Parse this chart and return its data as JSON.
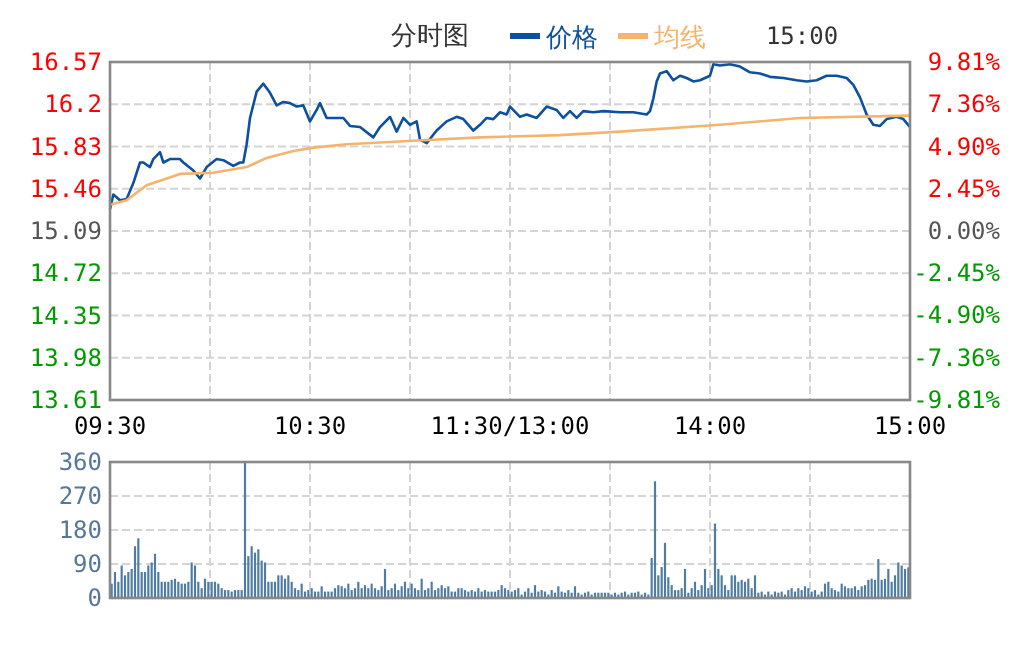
{
  "chart_data": [
    {
      "type": "line",
      "title": "分时图",
      "legend": "top",
      "grid": true,
      "annotations": [
        "15:00"
      ],
      "categories": [
        "09:30",
        null,
        null,
        null,
        null,
        null,
        null,
        null,
        null,
        null,
        null,
        null,
        null,
        null,
        null,
        null,
        null,
        null,
        null,
        null,
        null,
        null,
        null,
        null,
        null,
        null,
        null,
        null,
        null,
        null,
        null,
        null,
        null,
        null,
        null,
        null,
        null,
        null,
        null,
        null,
        null,
        null,
        null,
        null,
        null,
        null,
        null,
        null,
        null,
        null,
        null,
        null,
        null,
        null,
        null,
        null,
        null,
        null,
        null,
        null,
        "10:30",
        null,
        null,
        null,
        null,
        null,
        null,
        null,
        null,
        null,
        null,
        null,
        null,
        null,
        null,
        null,
        null,
        null,
        null,
        null,
        null,
        null,
        null,
        null,
        null,
        null,
        null,
        null,
        null,
        null,
        null,
        null,
        null,
        null,
        null,
        null,
        null,
        null,
        null,
        null,
        null,
        null,
        null,
        null,
        null,
        null,
        null,
        null,
        null,
        null,
        null,
        null,
        null,
        null,
        null,
        null,
        null,
        null,
        null,
        null,
        "11:30/13:00",
        null,
        null,
        null,
        null,
        null,
        null,
        null,
        null,
        null,
        null,
        null,
        null,
        null,
        null,
        null,
        null,
        null,
        null,
        null,
        null,
        null,
        null,
        null,
        null,
        null,
        null,
        null,
        null,
        null,
        null,
        null,
        null,
        null,
        null,
        null,
        null,
        null,
        null,
        null,
        null,
        null,
        null,
        null,
        null,
        null,
        null,
        null,
        null,
        null,
        null,
        null,
        null,
        null,
        null,
        null,
        null,
        null,
        null,
        null,
        "14:00",
        null,
        null,
        null,
        null,
        null,
        null,
        null,
        null,
        null,
        null,
        null,
        null,
        null,
        null,
        null,
        null,
        null,
        null,
        null,
        null,
        null,
        null,
        null,
        null,
        null,
        null,
        null,
        null,
        null,
        null,
        null,
        null,
        null,
        null,
        null,
        null,
        null,
        null,
        null,
        null,
        null,
        null,
        null,
        null,
        null,
        null,
        null,
        null,
        null,
        null,
        null,
        null,
        null,
        null,
        null,
        null,
        null,
        null,
        null,
        "15:00"
      ],
      "ylim": [
        13.61,
        16.57
      ],
      "yticks": [
        13.61,
        13.98,
        14.35,
        14.72,
        15.09,
        15.46,
        15.83,
        16.2,
        16.57
      ],
      "y2lim": [
        -9.81,
        9.81
      ],
      "y2ticks": [
        {
          "value": -9.81,
          "label": "-9.81%"
        },
        {
          "value": -7.36,
          "label": "-7.36%"
        },
        {
          "value": -4.9,
          "label": "-4.90%"
        },
        {
          "value": -2.45,
          "label": "-2.45%"
        },
        {
          "value": 0,
          "label": "0.00%"
        },
        {
          "value": 2.45,
          "label": "2.45%"
        },
        {
          "value": 4.9,
          "label": "4.90%"
        },
        {
          "value": 7.36,
          "label": "7.36%"
        },
        {
          "value": 9.81,
          "label": "9.81%"
        }
      ],
      "series": [
        {
          "name": "价格",
          "color": "#0d50a0",
          "values": [
            15.28,
            15.41,
            null,
            15.36,
            null,
            15.37,
            null,
            15.51,
            null,
            15.69,
            15.69,
            null,
            15.65,
            15.72,
            null,
            15.78,
            15.69,
            null,
            15.72,
            null,
            null,
            15.72,
            15.69,
            null,
            null,
            15.62,
            null,
            15.55,
            null,
            15.65,
            null,
            null,
            15.72,
            null,
            15.71,
            null,
            null,
            15.66,
            null,
            15.69,
            15.69,
            15.85,
            16.08,
            null,
            16.31,
            null,
            16.38,
            null,
            16.3,
            null,
            16.19,
            null,
            16.22,
            null,
            16.21,
            null,
            16.18,
            null,
            16.19,
            null,
            16.05,
            null,
            16.15,
            16.21,
            null,
            16.08,
            16.08,
            null,
            null,
            null,
            16.08,
            null,
            16.01,
            null,
            null,
            16.0,
            null,
            null,
            null,
            15.91,
            null,
            16.0,
            null,
            null,
            16.09,
            null,
            15.96,
            null,
            16.08,
            null,
            16.02,
            null,
            16.05,
            15.89,
            null,
            15.86,
            null,
            null,
            15.97,
            null,
            null,
            16.05,
            null,
            null,
            16.09,
            null,
            16.07,
            null,
            null,
            15.97,
            null,
            16.02,
            null,
            16.08,
            null,
            16.07,
            null,
            16.13,
            null,
            16.11,
            16.18,
            null,
            null,
            16.09,
            null,
            16.11,
            null,
            null,
            16.08,
            null,
            null,
            16.18,
            null,
            null,
            16.15,
            null,
            16.08,
            null,
            16.14,
            null,
            16.08,
            null,
            16.14,
            null,
            null,
            16.13,
            null,
            null,
            16.14,
            null,
            null,
            null,
            null,
            16.13,
            null,
            null,
            null,
            16.13,
            null,
            null,
            null,
            16.11,
            16.14,
            16.25,
            16.4,
            16.47,
            null,
            16.49,
            null,
            16.41,
            null,
            16.45,
            null,
            16.43,
            null,
            16.4,
            null,
            16.41,
            null,
            null,
            16.45,
            16.55,
            null,
            16.54,
            null,
            null,
            16.55,
            null,
            null,
            16.53,
            null,
            null,
            16.48,
            null,
            null,
            16.47,
            null,
            null,
            16.44,
            null,
            null,
            null,
            16.43,
            null,
            null,
            null,
            16.41,
            null,
            null,
            16.4,
            null,
            null,
            16.41,
            null,
            null,
            16.45,
            null,
            null,
            16.45,
            null,
            null,
            16.43,
            null,
            16.37,
            null,
            16.26,
            null,
            16.11,
            null,
            16.02,
            null,
            16.01,
            null,
            16.07,
            null,
            null,
            16.09,
            null,
            16.07,
            null,
            16.0
          ]
        },
        {
          "name": "均线",
          "color": "#f5b46e",
          "values": [
            15.32,
            null,
            null,
            null,
            null,
            15.36,
            null,
            null,
            null,
            null,
            null,
            15.49,
            null,
            null,
            null,
            null,
            null,
            null,
            null,
            null,
            null,
            15.59,
            null,
            null,
            null,
            null,
            null,
            null,
            null,
            null,
            null,
            15.6,
            null,
            null,
            null,
            null,
            null,
            null,
            null,
            null,
            null,
            15.65,
            null,
            null,
            null,
            null,
            null,
            15.73,
            null,
            null,
            null,
            null,
            null,
            null,
            null,
            15.79,
            null,
            null,
            null,
            null,
            null,
            15.82,
            null,
            null,
            null,
            null,
            null,
            null,
            null,
            null,
            null,
            15.85,
            null,
            null,
            null,
            null,
            null,
            null,
            null,
            null,
            null,
            null,
            null,
            null,
            null,
            null,
            null,
            null,
            null,
            null,
            null,
            15.88,
            null,
            null,
            null,
            null,
            null,
            null,
            null,
            null,
            null,
            null,
            null,
            null,
            null,
            null,
            null,
            null,
            null,
            null,
            null,
            15.91,
            null,
            null,
            null,
            null,
            null,
            null,
            null,
            null,
            null,
            null,
            null,
            15.92,
            null,
            null,
            null,
            null,
            null,
            null,
            null,
            null,
            null,
            null,
            null,
            15.93,
            null,
            null,
            null,
            null,
            null,
            null,
            null,
            null,
            null,
            null,
            null,
            null,
            null,
            null,
            null,
            null,
            null,
            15.96,
            null,
            null,
            null,
            null,
            null,
            null,
            null,
            null,
            null,
            null,
            null,
            null,
            null,
            null,
            null,
            null,
            null,
            null,
            null,
            null,
            null,
            null,
            null,
            null,
            null,
            null,
            null,
            null,
            null,
            16.02,
            null,
            null,
            null,
            null,
            null,
            null,
            null,
            null,
            null,
            null,
            null,
            null,
            null,
            null,
            null,
            null,
            null,
            null,
            null,
            null,
            null,
            null,
            null,
            16.08,
            null,
            null,
            null,
            null,
            null,
            null,
            null,
            null,
            null,
            null,
            null,
            null,
            null,
            null,
            null,
            null,
            null,
            null,
            null,
            null,
            null,
            null,
            null,
            null,
            null,
            null,
            null,
            null,
            null,
            null,
            null,
            null,
            16.1
          ]
        }
      ]
    },
    {
      "type": "bar",
      "color": "#4f7ca3",
      "grid": true,
      "tick_labels": "y",
      "ylim": [
        0,
        360
      ],
      "yticks": [
        0,
        90,
        180,
        270,
        360
      ],
      "categories": [
        null,
        null,
        null,
        null,
        null,
        null,
        null,
        null,
        null,
        null,
        null,
        null,
        null,
        null,
        null,
        null,
        null,
        null,
        null,
        null,
        null,
        null,
        null,
        null,
        null,
        null,
        null,
        null,
        null,
        null,
        null,
        null,
        null,
        null,
        null,
        null,
        null,
        null,
        null,
        null,
        null,
        null,
        null,
        null,
        null,
        null,
        null,
        null,
        null,
        null,
        null,
        null,
        null,
        null,
        null,
        null,
        null,
        null,
        null,
        null,
        null,
        null,
        null,
        null,
        null,
        null,
        null,
        null,
        null,
        null,
        null,
        null,
        null,
        null,
        null,
        null,
        null,
        null,
        null,
        null,
        null,
        null,
        null,
        null,
        null,
        null,
        null,
        null,
        null,
        null,
        null,
        null,
        null,
        null,
        null,
        null,
        null,
        null,
        null,
        null,
        null,
        null,
        null,
        null,
        null,
        null,
        null,
        null,
        null,
        null,
        null,
        null,
        null,
        null,
        null,
        null,
        null,
        null,
        null,
        null,
        null,
        null,
        null,
        null,
        null,
        null,
        null,
        null,
        null,
        null,
        null,
        null,
        null,
        null,
        null,
        null,
        null,
        null,
        null,
        null,
        null,
        null,
        null,
        null,
        null,
        null,
        null,
        null,
        null,
        null,
        null,
        null,
        null,
        null,
        null,
        null,
        null,
        null,
        null,
        null,
        null,
        null,
        null,
        null,
        null,
        null,
        null,
        null,
        null,
        null,
        null,
        null,
        null,
        null,
        null,
        null,
        null,
        null,
        null,
        null,
        null,
        null,
        null,
        null,
        null,
        null,
        null,
        null,
        null,
        null,
        null,
        null,
        null,
        null,
        null,
        null,
        null,
        null,
        null,
        null,
        null,
        null,
        null,
        null,
        null,
        null,
        null,
        null,
        null,
        null,
        null,
        null,
        null,
        null,
        null,
        null,
        null,
        null,
        null,
        null,
        null,
        null,
        null,
        null,
        null,
        null,
        null,
        null,
        null,
        null,
        null,
        null,
        null,
        null,
        null,
        null,
        null,
        null,
        null,
        null
      ],
      "values": [
        38,
        69,
        43,
        86,
        60,
        69,
        77,
        137,
        158,
        69,
        69,
        86,
        94,
        117,
        69,
        43,
        43,
        43,
        48,
        51,
        43,
        38,
        38,
        43,
        94,
        86,
        43,
        26,
        51,
        43,
        43,
        43,
        38,
        26,
        21,
        21,
        17,
        21,
        21,
        21,
        360,
        111,
        137,
        120,
        129,
        99,
        94,
        43,
        43,
        43,
        60,
        60,
        51,
        60,
        43,
        26,
        21,
        38,
        17,
        21,
        26,
        17,
        17,
        31,
        17,
        17,
        17,
        26,
        34,
        31,
        26,
        38,
        21,
        26,
        43,
        26,
        34,
        26,
        38,
        26,
        21,
        31,
        77,
        21,
        26,
        38,
        21,
        31,
        43,
        26,
        38,
        26,
        21,
        51,
        21,
        26,
        43,
        21,
        26,
        34,
        26,
        31,
        17,
        17,
        26,
        26,
        21,
        17,
        21,
        17,
        26,
        17,
        21,
        17,
        17,
        17,
        21,
        34,
        26,
        21,
        17,
        21,
        26,
        9,
        17,
        26,
        14,
        34,
        17,
        21,
        17,
        9,
        21,
        14,
        31,
        17,
        14,
        21,
        14,
        31,
        14,
        9,
        14,
        17,
        9,
        14,
        14,
        14,
        14,
        14,
        9,
        14,
        9,
        14,
        17,
        9,
        14,
        14,
        17,
        9,
        14,
        9,
        106,
        309,
        60,
        82,
        146,
        55,
        34,
        21,
        21,
        26,
        77,
        14,
        26,
        43,
        21,
        34,
        77,
        26,
        34,
        197,
        77,
        60,
        34,
        21,
        60,
        60,
        43,
        48,
        43,
        51,
        26,
        60,
        14,
        17,
        9,
        17,
        9,
        17,
        14,
        17,
        9,
        21,
        26,
        17,
        26,
        21,
        31,
        26,
        17,
        21,
        9,
        17,
        38,
        43,
        26,
        21,
        17,
        38,
        31,
        26,
        26,
        31,
        21,
        31,
        34,
        48,
        51,
        48,
        103,
        48,
        51,
        77,
        43,
        60,
        94,
        86,
        77,
        81
      ]
    }
  ]
}
